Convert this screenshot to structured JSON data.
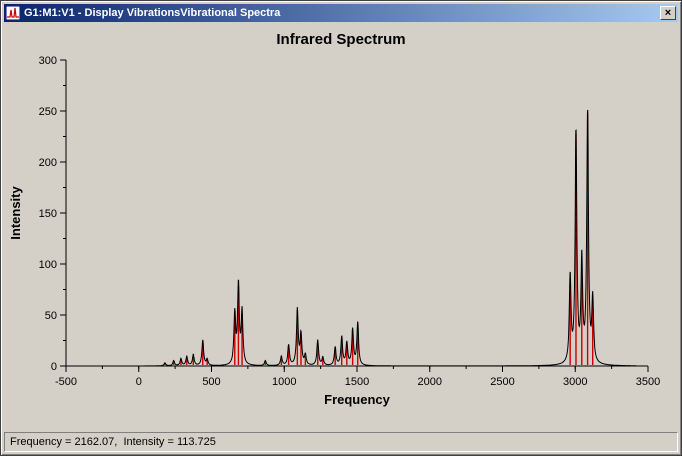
{
  "window": {
    "title": "G1:M1:V1 - Display VibrationsVibrational Spectra",
    "close_label": "×"
  },
  "status": {
    "text": "Frequency = 2162.07,  Intensity = 113.725"
  },
  "chart_data": {
    "type": "line",
    "title": "Infrared Spectrum",
    "xlabel": "Frequency",
    "ylabel": "Intensity",
    "xlim": [
      -500,
      3500
    ],
    "ylim": [
      0,
      300
    ],
    "xticks": [
      -500,
      0,
      500,
      1000,
      1500,
      2000,
      2500,
      3000,
      3500
    ],
    "yticks": [
      0,
      50,
      100,
      150,
      200,
      250,
      300
    ],
    "x_minor_step": 250,
    "y_minor_step": 25,
    "grid": false,
    "legend": "none",
    "envelope_color": "#000000",
    "stick_color": "#cc0000",
    "lorentzian_hwhm": 7,
    "envelope_range": [
      40,
      3420
    ],
    "peaks": [
      {
        "freq": 180,
        "intensity": 3
      },
      {
        "freq": 240,
        "intensity": 5
      },
      {
        "freq": 290,
        "intensity": 7
      },
      {
        "freq": 330,
        "intensity": 9
      },
      {
        "freq": 375,
        "intensity": 11
      },
      {
        "freq": 440,
        "intensity": 25
      },
      {
        "freq": 470,
        "intensity": 6
      },
      {
        "freq": 660,
        "intensity": 50
      },
      {
        "freq": 685,
        "intensity": 78
      },
      {
        "freq": 710,
        "intensity": 52
      },
      {
        "freq": 870,
        "intensity": 5
      },
      {
        "freq": 980,
        "intensity": 9
      },
      {
        "freq": 1030,
        "intensity": 20
      },
      {
        "freq": 1090,
        "intensity": 55
      },
      {
        "freq": 1115,
        "intensity": 30
      },
      {
        "freq": 1145,
        "intensity": 10
      },
      {
        "freq": 1230,
        "intensity": 25
      },
      {
        "freq": 1265,
        "intensity": 8
      },
      {
        "freq": 1350,
        "intensity": 18
      },
      {
        "freq": 1395,
        "intensity": 28
      },
      {
        "freq": 1430,
        "intensity": 22
      },
      {
        "freq": 1470,
        "intensity": 35
      },
      {
        "freq": 1505,
        "intensity": 42
      },
      {
        "freq": 2965,
        "intensity": 85
      },
      {
        "freq": 3005,
        "intensity": 228
      },
      {
        "freq": 3045,
        "intensity": 100
      },
      {
        "freq": 3085,
        "intensity": 248
      },
      {
        "freq": 3120,
        "intensity": 62
      }
    ]
  }
}
